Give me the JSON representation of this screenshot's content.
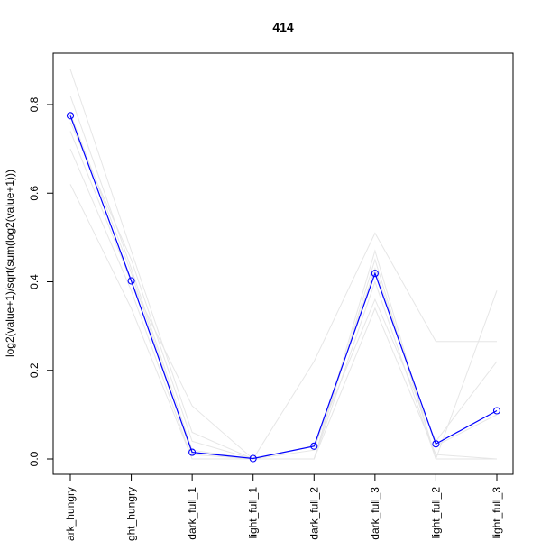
{
  "chart_data": {
    "type": "line",
    "title": "414",
    "xlabel": "",
    "ylabel": "log2(value+1)/sqrt(sum(log2(value+1)))",
    "categories": [
      "dark_hungry",
      "light_hungry",
      "dark_full_1",
      "light_full_1",
      "dark_full_2",
      "dark_full_3",
      "light_full_2",
      "light_full_3"
    ],
    "ylim": [
      0.0,
      0.9
    ],
    "yticks": [
      0.0,
      0.2,
      0.4,
      0.6,
      0.8
    ],
    "ytick_labels": [
      "0.0",
      "0.2",
      "0.4",
      "0.6",
      "0.8"
    ],
    "grid": false,
    "legend": "none",
    "highlight_color": "#0000ff",
    "background_color": "#e6e6e6",
    "series": [
      {
        "values": [
          0.775,
          0.402,
          0.015,
          0.001,
          0.029,
          0.419,
          0.034,
          0.109
        ],
        "highlight": true
      },
      {
        "values": [
          0.88,
          0.47,
          0.06,
          0.0,
          0.0,
          0.47,
          0.0,
          0.0
        ]
      },
      {
        "values": [
          0.82,
          0.43,
          0.02,
          0.0,
          0.0,
          0.45,
          0.0,
          0.0
        ]
      },
      {
        "values": [
          0.76,
          0.45,
          0.04,
          0.0,
          0.0,
          0.4,
          0.0,
          0.38
        ]
      },
      {
        "values": [
          0.74,
          0.4,
          0.12,
          0.0,
          0.22,
          0.51,
          0.265,
          0.265
        ]
      },
      {
        "values": [
          0.7,
          0.38,
          0.0,
          0.0,
          0.03,
          0.36,
          0.04,
          0.22
        ]
      },
      {
        "values": [
          0.62,
          0.34,
          0.0,
          0.0,
          0.0,
          0.34,
          0.01,
          0.0
        ]
      },
      {
        "values": [
          0.78,
          0.42,
          0.01,
          0.0,
          0.02,
          0.43,
          0.03,
          0.1
        ]
      }
    ]
  }
}
